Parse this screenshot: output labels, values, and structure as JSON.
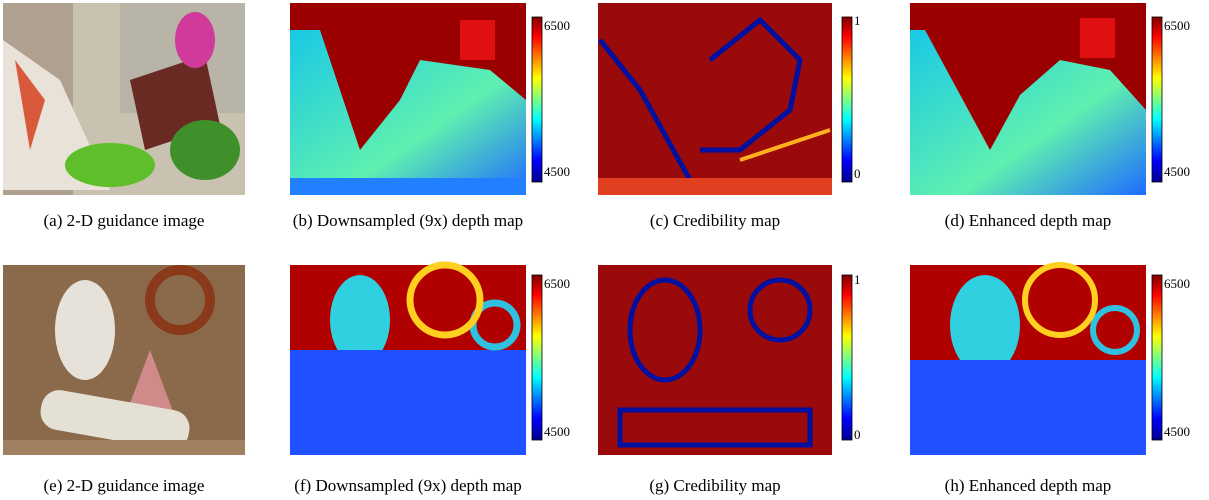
{
  "panels": [
    {
      "caption": "(a) 2-D guidance image"
    },
    {
      "caption": "(b) Downsampled (9x) depth map",
      "colorbar": {
        "max": 6500,
        "min": 4500
      }
    },
    {
      "caption": "(c) Credibility map",
      "colorbar": {
        "max": 1,
        "min": 0
      }
    },
    {
      "caption": "(d) Enhanced depth map",
      "colorbar": {
        "max": 6500,
        "min": 4500
      }
    },
    {
      "caption": "(e) 2-D guidance image"
    },
    {
      "caption": "(f) Downsampled (9x) depth map",
      "colorbar": {
        "max": 6500,
        "min": 4500
      }
    },
    {
      "caption": "(g) Credibility map",
      "colorbar": {
        "max": 1,
        "min": 0
      }
    },
    {
      "caption": "(h) Enhanced depth map",
      "colorbar": {
        "max": 6500,
        "min": 4500
      }
    }
  ]
}
